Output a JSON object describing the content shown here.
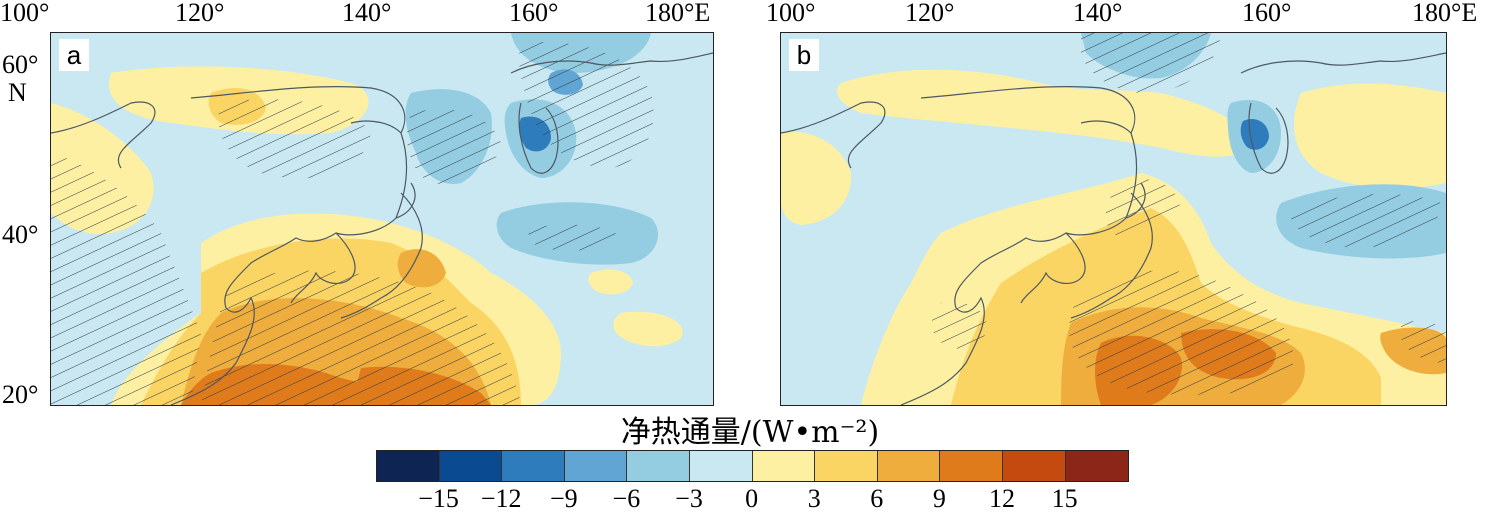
{
  "map": {
    "lon_ticks": [
      "100°",
      "120°",
      "140°",
      "160°",
      "180°E"
    ],
    "lat_ticks": [
      "60°",
      "40°",
      "20°"
    ],
    "lat_unit": "N"
  },
  "panels": [
    {
      "label": "a"
    },
    {
      "label": "b"
    }
  ],
  "colorbar": {
    "title": "净热通量/(W•m⁻²)",
    "tick_labels": [
      "−15",
      "−12",
      "−9",
      "−6",
      "−3",
      "0",
      "3",
      "6",
      "9",
      "12",
      "15"
    ],
    "colors": [
      "#0e2553",
      "#0a4a91",
      "#2f7cbd",
      "#60a5d3",
      "#94cde2",
      "#c9e8f2",
      "#fdf0a3",
      "#fbd564",
      "#efad3d",
      "#e07b1c",
      "#c44a0f",
      "#8b2618"
    ]
  },
  "legend_palette": {
    "land": "#c9e8f2",
    "hatch": "#2e3a44",
    "coast": "#4d5861"
  }
}
